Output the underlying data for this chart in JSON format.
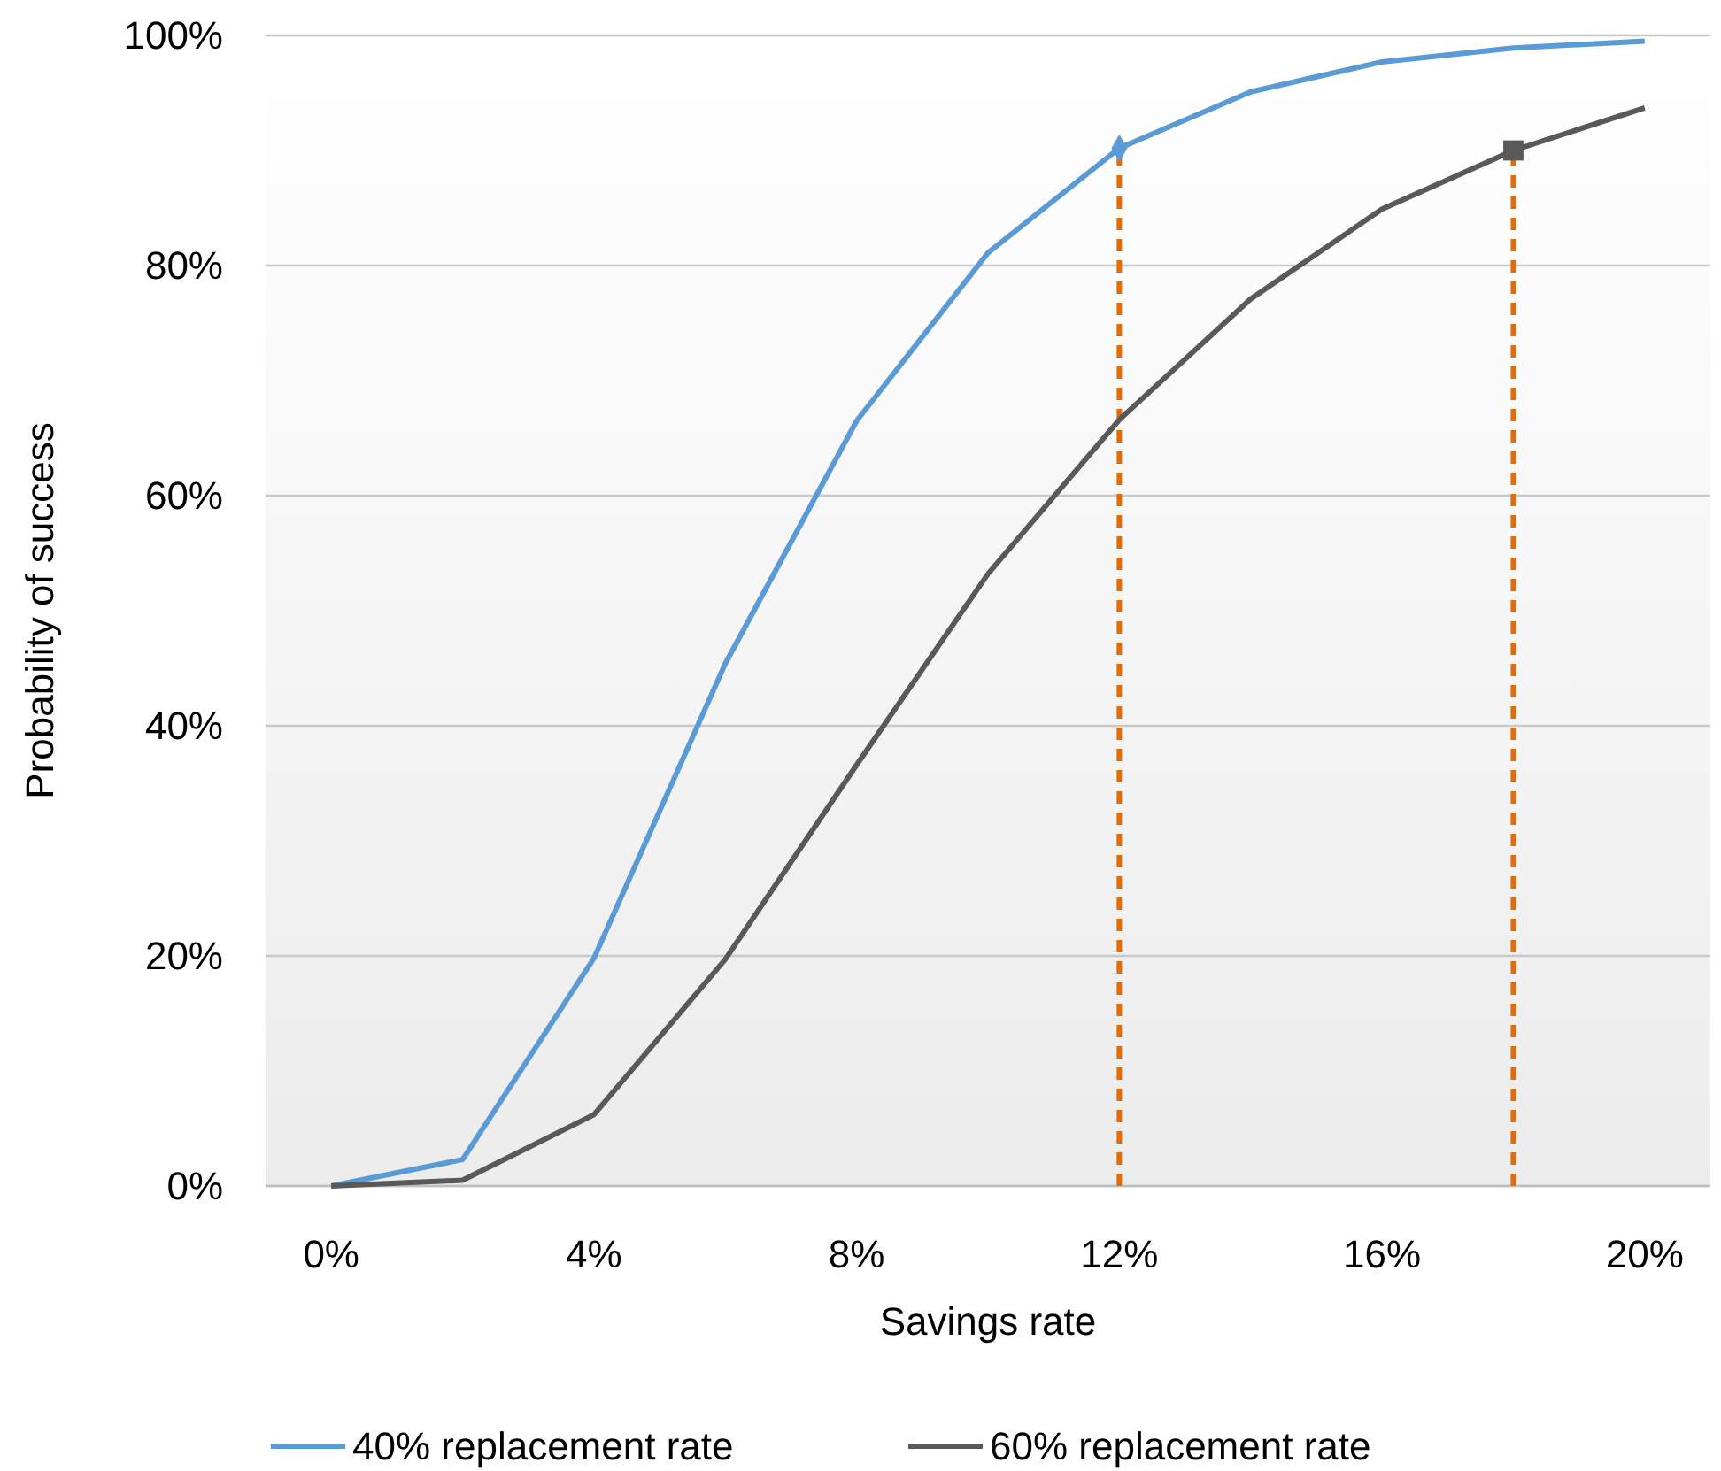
{
  "chart_data": {
    "type": "line",
    "xlabel": "Savings rate",
    "ylabel": "Probability of success",
    "x": [
      0,
      2,
      4,
      6,
      8,
      10,
      12,
      14,
      16,
      18,
      20
    ],
    "xlim": [
      -1,
      21
    ],
    "xticks": [
      {
        "value": 0,
        "label": "0%"
      },
      {
        "value": 4,
        "label": "4%"
      },
      {
        "value": 8,
        "label": "8%"
      },
      {
        "value": 12,
        "label": "12%"
      },
      {
        "value": 16,
        "label": "16%"
      },
      {
        "value": 20,
        "label": "20%"
      }
    ],
    "ylim": [
      0,
      100
    ],
    "yticks": [
      {
        "value": 0,
        "label": "0%"
      },
      {
        "value": 20,
        "label": "20%"
      },
      {
        "value": 40,
        "label": "40%"
      },
      {
        "value": 60,
        "label": "60%"
      },
      {
        "value": 80,
        "label": "80%"
      },
      {
        "value": 100,
        "label": "100%"
      }
    ],
    "grid": "y",
    "legend": "bottom",
    "marker": "none",
    "line_style": "solid",
    "ref_lines": [
      {
        "axis": "x",
        "value": 12,
        "color": "#e36c0a",
        "line_style": "dashed"
      },
      {
        "axis": "x",
        "value": 18,
        "color": "#e36c0a",
        "line_style": "dashed"
      }
    ],
    "series": [
      {
        "name": "40% replacement rate",
        "color": "#5b9bd5",
        "values": [
          0,
          2.3,
          19.8,
          45.4,
          66.5,
          81.1,
          90.2,
          95.1,
          97.7,
          98.9,
          99.5
        ]
      },
      {
        "name": "60% replacement rate",
        "color": "#595959",
        "values": [
          0,
          0.5,
          6.2,
          19.7,
          36.6,
          53.2,
          66.6,
          77.1,
          84.9,
          90,
          93.7
        ]
      },
      {
        "type": "scatter",
        "color": "#5b9bd5",
        "marker": "diamond",
        "values": [
          null,
          null,
          null,
          null,
          null,
          null,
          90.2,
          null,
          null,
          null,
          null
        ]
      },
      {
        "type": "scatter",
        "color": "#595959",
        "marker": "square",
        "values": [
          null,
          null,
          null,
          null,
          null,
          null,
          null,
          null,
          null,
          90,
          null
        ]
      }
    ]
  }
}
